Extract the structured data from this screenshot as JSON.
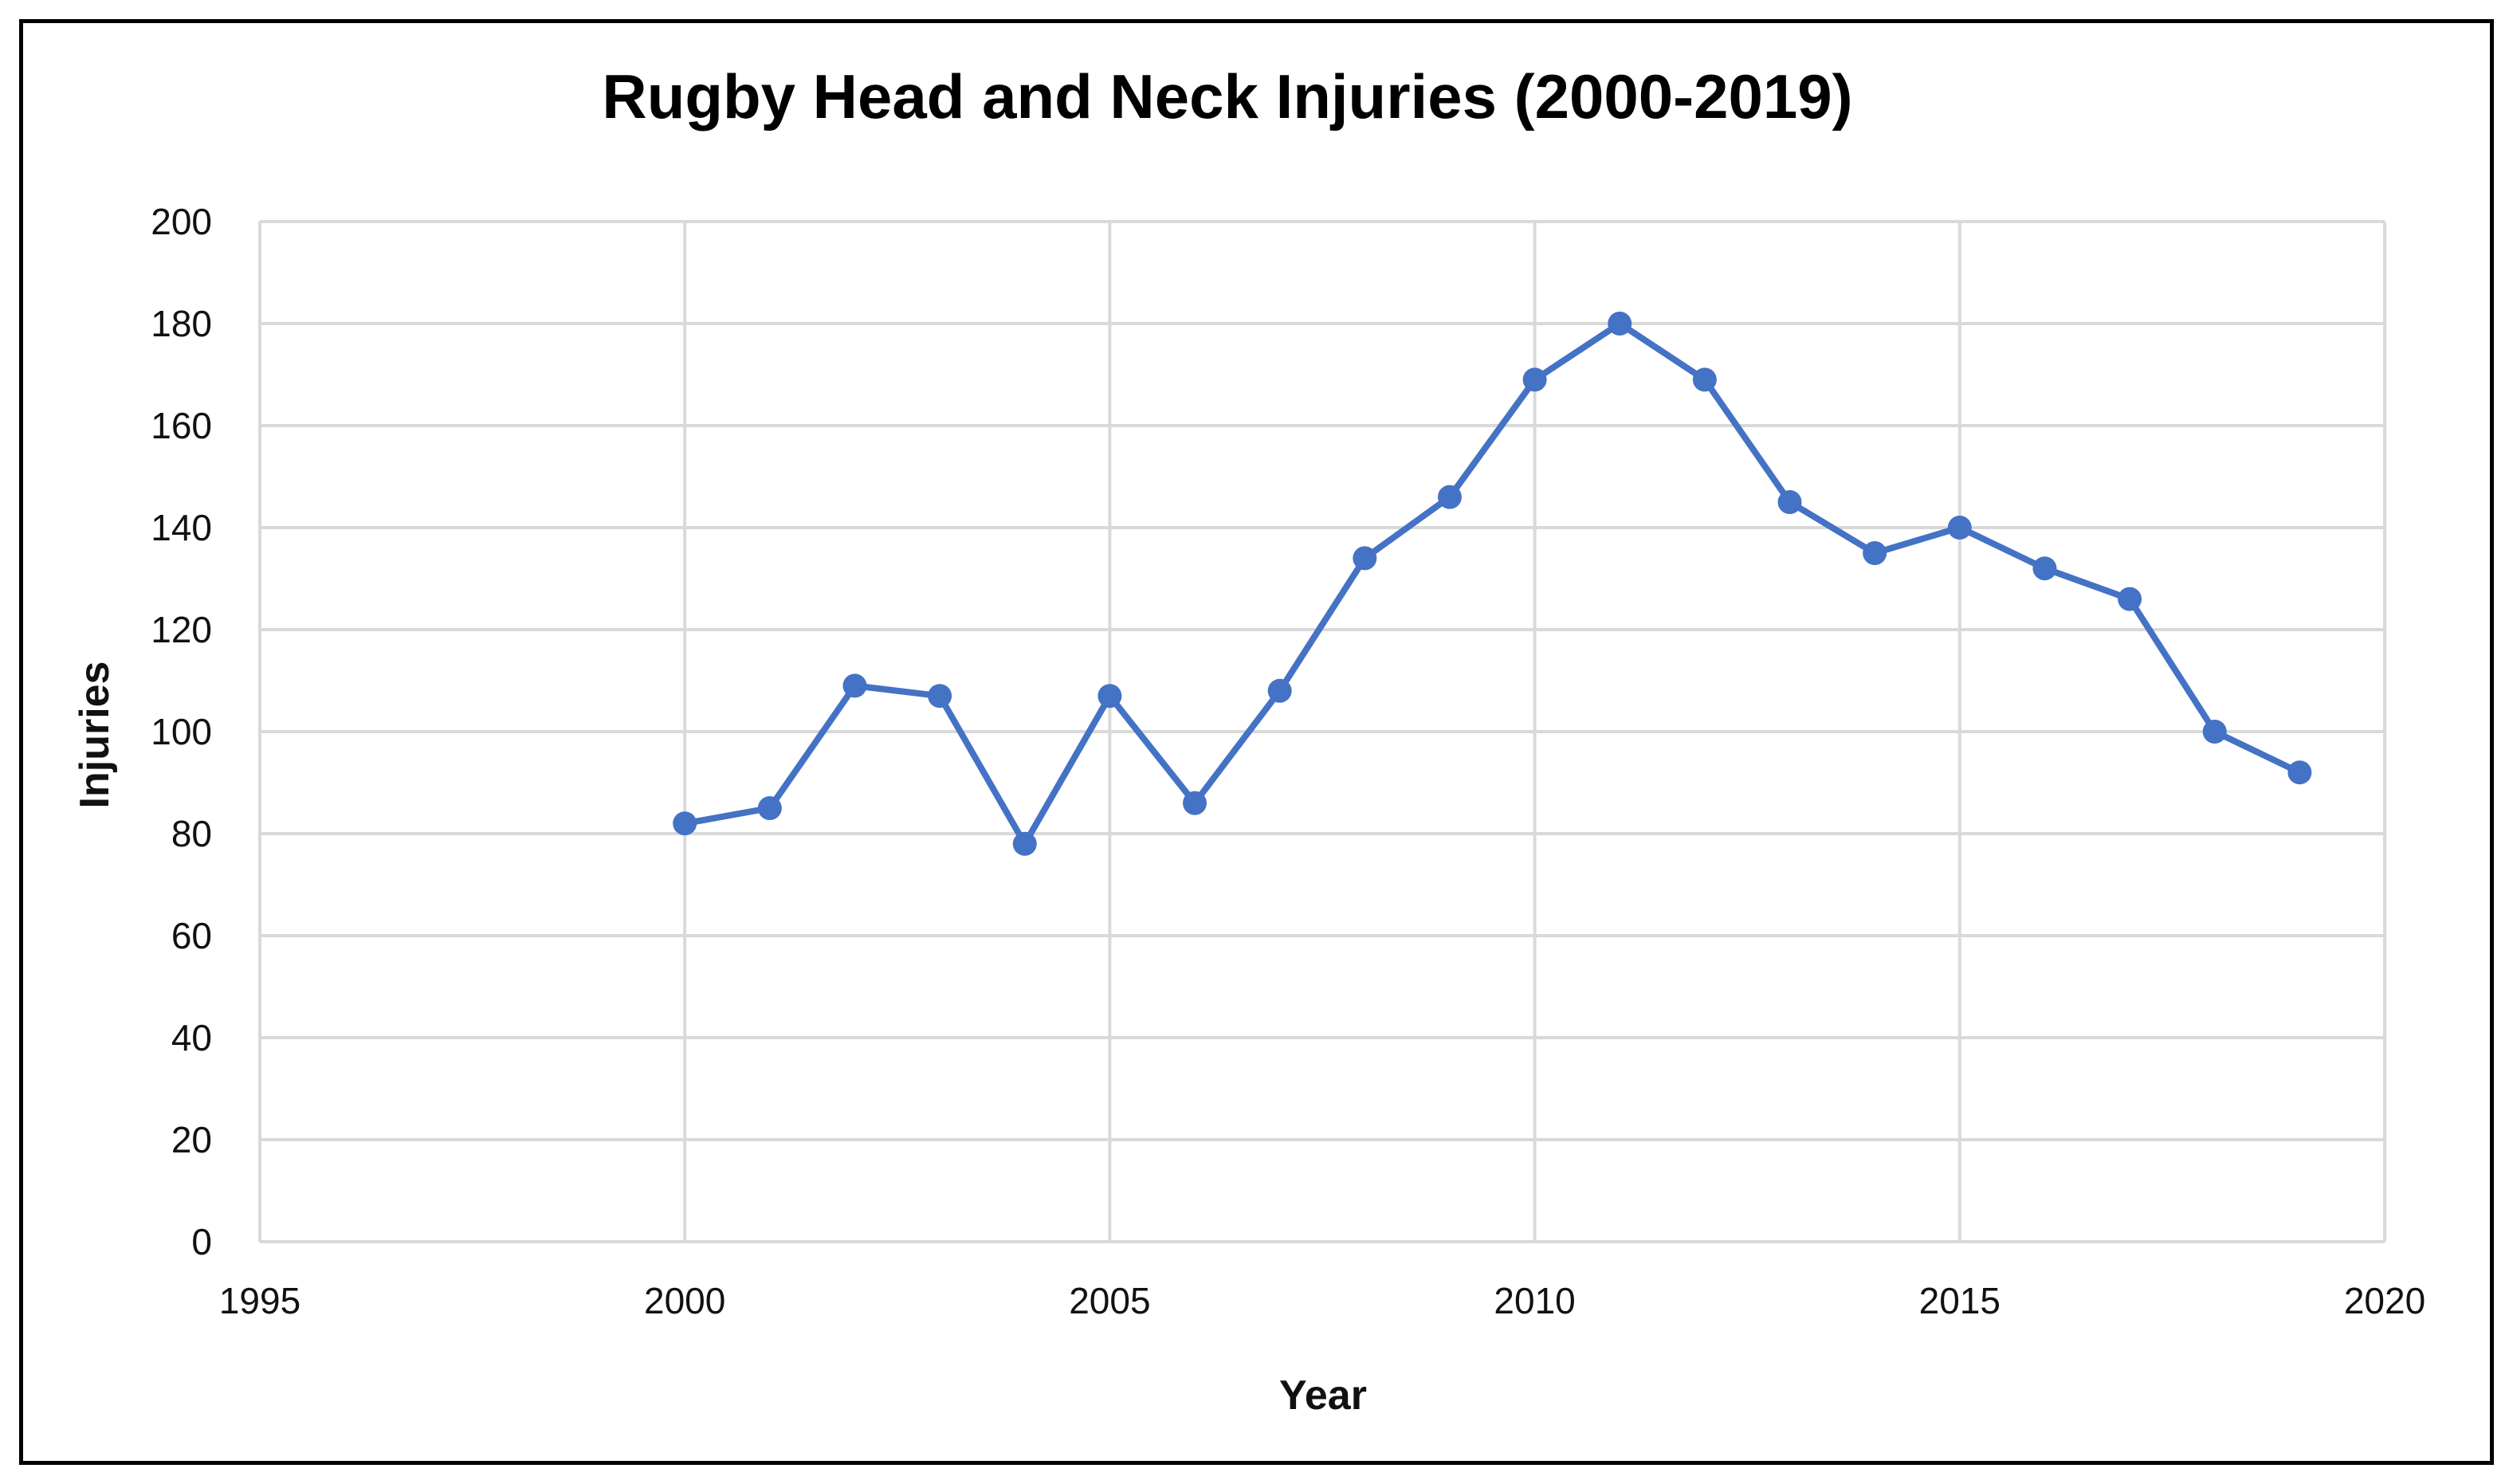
{
  "chart_data": {
    "type": "line",
    "title": "Rugby Head and Neck Injuries (2000-2019)",
    "xlabel": "Year",
    "ylabel": "Injuries",
    "xlim": [
      1995,
      2020
    ],
    "ylim": [
      0,
      200
    ],
    "x_ticks": [
      1995,
      2000,
      2005,
      2010,
      2015,
      2020
    ],
    "y_ticks": [
      0,
      20,
      40,
      60,
      80,
      100,
      120,
      140,
      160,
      180,
      200
    ],
    "grid": true,
    "legend": "none",
    "series": [
      {
        "x": [
          2000,
          2001,
          2002,
          2003,
          2004,
          2005,
          2006,
          2007,
          2008,
          2009,
          2010,
          2011,
          2012,
          2013,
          2014,
          2015,
          2016,
          2017,
          2018,
          2019
        ],
        "y": [
          82,
          85,
          109,
          107,
          78,
          107,
          86,
          108,
          134,
          146,
          169,
          180,
          169,
          145,
          135,
          140,
          132,
          126,
          100,
          92
        ],
        "color": "#4472c4",
        "marker": "circle"
      }
    ]
  }
}
